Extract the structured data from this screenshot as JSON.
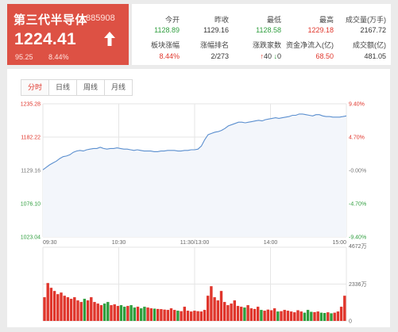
{
  "quote": {
    "name": "第三代半导体",
    "code": "885908",
    "price": "1224.41",
    "change": "95.25",
    "change_pct": "8.44%",
    "trend_icon": "up-arrow-icon"
  },
  "stats": {
    "open": {
      "label": "今开",
      "value": "1128.89"
    },
    "prev_close": {
      "label": "昨收",
      "value": "1129.16"
    },
    "low": {
      "label": "最低",
      "value": "1128.58"
    },
    "high": {
      "label": "最高",
      "value": "1229.18"
    },
    "volume": {
      "label": "成交量(万手)",
      "value": "2167.72"
    },
    "sector_change": {
      "label": "板块涨幅",
      "value": "8.44%"
    },
    "rank": {
      "label": "涨幅排名",
      "value": "2/273"
    },
    "advance_decline": {
      "label": "涨跌家数",
      "up": "40",
      "down": "0"
    },
    "net_inflow": {
      "label": "资金净流入(亿)",
      "value": "68.50"
    },
    "turnover": {
      "label": "成交额(亿)",
      "value": "481.05"
    }
  },
  "tabs": [
    "分时",
    "日线",
    "周线",
    "月线"
  ],
  "active_tab": 0,
  "colors": {
    "up": "#e0352b",
    "down": "#2f9e3e",
    "line": "#5b8fcf",
    "quote_bg": "#dd5144"
  },
  "chart_data": {
    "type": "line",
    "price_axis": {
      "ticks": [
        "1235.28",
        "1182.22",
        "1129.16",
        "1076.10",
        "1023.04"
      ],
      "ylim": [
        1023.04,
        1235.28
      ]
    },
    "pct_axis": {
      "ticks": [
        "9.40%",
        "4.70%",
        "-0.00%",
        "-4.70%",
        "-9.40%"
      ]
    },
    "x_ticks": [
      "09:30",
      "10:30",
      "11:30/13:00",
      "14:00",
      "15:00"
    ],
    "volume_axis": {
      "ticks": [
        "4672万",
        "2336万",
        "0"
      ],
      "ylim": [
        0,
        4672
      ]
    },
    "price_series": [
      1130,
      1134,
      1138,
      1141,
      1144,
      1148,
      1151,
      1152,
      1154,
      1158,
      1160,
      1161,
      1160,
      1162,
      1163,
      1164,
      1164,
      1166,
      1164,
      1163,
      1164,
      1164,
      1165,
      1164,
      1163,
      1163,
      1162,
      1161,
      1162,
      1161,
      1160,
      1160,
      1160,
      1159,
      1159,
      1160,
      1160,
      1161,
      1161,
      1161,
      1160,
      1160,
      1161,
      1161,
      1162,
      1162,
      1163,
      1168,
      1178,
      1186,
      1188,
      1190,
      1191,
      1193,
      1196,
      1200,
      1202,
      1204,
      1206,
      1206,
      1205,
      1206,
      1207,
      1208,
      1209,
      1208,
      1210,
      1211,
      1212,
      1213,
      1212,
      1213,
      1214,
      1215,
      1217,
      1217,
      1219,
      1219,
      1218,
      1217,
      1216,
      1218,
      1218,
      1216,
      1215,
      1215,
      1214,
      1214,
      1214,
      1215,
      1216
    ],
    "volume_series": [
      1500,
      2400,
      2100,
      1900,
      1700,
      1800,
      1600,
      1500,
      1400,
      1500,
      1300,
      1200,
      1400,
      1300,
      1500,
      1200,
      1100,
      1000,
      1100,
      1200,
      1000,
      1050,
      950,
      1000,
      900,
      950,
      1000,
      850,
      900,
      800,
      900,
      850,
      800,
      780,
      760,
      750,
      720,
      700,
      800,
      700,
      650,
      620,
      900,
      650,
      600,
      650,
      620,
      600,
      700,
      1600,
      2200,
      1500,
      1300,
      1900,
      1200,
      1000,
      1100,
      1300,
      950,
      900,
      850,
      1000,
      800,
      760,
      900,
      700,
      650,
      720,
      680,
      800,
      600,
      620,
      700,
      650,
      600,
      550,
      680,
      600,
      520,
      700,
      580,
      560,
      600,
      520,
      500,
      550,
      480,
      520,
      600,
      900,
      1600
    ]
  }
}
